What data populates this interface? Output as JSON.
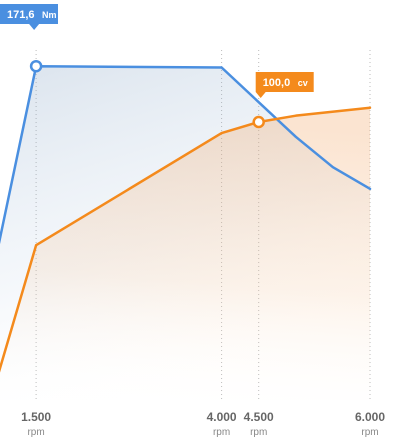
{
  "colors": {
    "torque": "#4a8fe0",
    "power": "#f48a1c",
    "background": "#ffffff",
    "grid": "#bbbbbb"
  },
  "chart_data": {
    "type": "line",
    "x_unit": "rpm",
    "xlim": [
      1000,
      6000
    ],
    "x_ticks": [
      {
        "x": 1500,
        "label": "1.500",
        "unit": "rpm"
      },
      {
        "x": 4000,
        "label": "4.000",
        "unit": "rpm"
      },
      {
        "x": 4500,
        "label": "4.500",
        "unit": "rpm"
      },
      {
        "x": 6000,
        "label": "6.000",
        "unit": "rpm"
      }
    ],
    "series": [
      {
        "key": "torque",
        "unit": "Nm",
        "ylim": [
          0,
          180
        ],
        "points": [
          [
            1000,
            90
          ],
          [
            1500,
            171.6
          ],
          [
            4000,
            171.0
          ],
          [
            4500,
            155
          ],
          [
            5000,
            139
          ],
          [
            5500,
            125
          ],
          [
            6000,
            115
          ]
        ],
        "highlight": {
          "x": 1500,
          "value": "171,6",
          "unit": "Nm"
        }
      },
      {
        "key": "power",
        "unit": "cv",
        "ylim": [
          0,
          125
        ],
        "points": [
          [
            1000,
            21
          ],
          [
            1500,
            61
          ],
          [
            4000,
            96.5
          ],
          [
            4500,
            100.0
          ],
          [
            5000,
            102
          ],
          [
            6000,
            104.5
          ]
        ],
        "highlight": {
          "x": 4500,
          "value": "100,0",
          "unit": "cv"
        }
      }
    ],
    "grid": "vertical-dotted",
    "legend": "none"
  }
}
